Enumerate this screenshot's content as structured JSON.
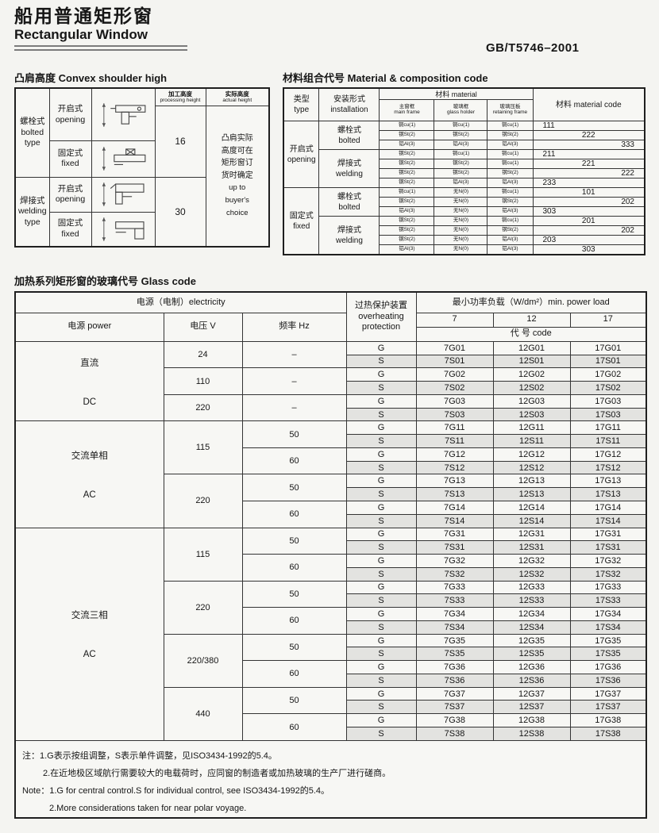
{
  "page": {
    "title_cn": "船用普通矩形窗",
    "title_en": "Rectangular Window",
    "standard": "GB/T5746–2001"
  },
  "convex_table": {
    "title": "凸肩高度 Convex shoulder high",
    "col_processing_cn": "加工高度",
    "col_processing_en": "processing height",
    "col_actual_cn": "实际高度",
    "col_actual_en": "actual height",
    "rows": [
      {
        "type_cn": "螺栓式",
        "type_en": "bolted type",
        "height": "16",
        "installs": [
          {
            "cn": "开启式",
            "en": "opening"
          },
          {
            "cn": "固定式",
            "en": "fixed"
          }
        ]
      },
      {
        "type_cn": "焊接式",
        "type_en": "welding type",
        "height": "30",
        "installs": [
          {
            "cn": "开启式",
            "en": "opening"
          },
          {
            "cn": "固定式",
            "en": "fixed"
          }
        ]
      }
    ],
    "actual_note_cn": [
      "凸肩实际",
      "高度可在",
      "矩形窗订",
      "货时确定"
    ],
    "actual_note_en": [
      "up to",
      "buyer's",
      "choice"
    ]
  },
  "material_table": {
    "title": "材料组合代号 Material & composition code",
    "headers": {
      "type_cn": "类型",
      "type_en": "type",
      "install_cn": "安装形式",
      "install_en": "installation",
      "material_cn": "材料",
      "material_en": "material",
      "main_cn": "主窗框",
      "main_en": "main frame",
      "holder_cn": "玻璃框",
      "holder_en": "glass holder",
      "retain_cn": "玻璃压板",
      "retain_en": "retaining frame",
      "code_cn": "材料",
      "code_en": "material code"
    },
    "groups": [
      {
        "type_cn": "开启式",
        "type_en": "opening",
        "installs": [
          {
            "cn": "螺栓式",
            "en": "bolted",
            "rows": [
              {
                "m": [
                  "铜cu(1)",
                  "铜cu(1)",
                  "铜cu(1)"
                ],
                "code": "111",
                "align": "l"
              },
              {
                "m": [
                  "钢St(2)",
                  "钢St(2)",
                  "钢St(2)"
                ],
                "code": "222",
                "align": "c"
              },
              {
                "m": [
                  "铝Al(3)",
                  "铝Al(3)",
                  "铝Al(3)"
                ],
                "code": "333",
                "align": "r"
              }
            ]
          },
          {
            "cn": "焊接式",
            "en": "welding",
            "rows": [
              {
                "m": [
                  "钢St(2)",
                  "铜cu(1)",
                  "铜cu(1)"
                ],
                "code": "211",
                "align": "l"
              },
              {
                "m": [
                  "钢St(2)",
                  "钢St(2)",
                  "铜cu(1)"
                ],
                "code": "221",
                "align": "c"
              },
              {
                "m": [
                  "钢St(2)",
                  "钢St(2)",
                  "钢St(2)"
                ],
                "code": "222",
                "align": "r"
              },
              {
                "m": [
                  "钢St(2)",
                  "铝Al(3)",
                  "铝Al(3)"
                ],
                "code": "233",
                "align": "l"
              }
            ]
          }
        ]
      },
      {
        "type_cn": "固定式",
        "type_en": "fixed",
        "installs": [
          {
            "cn": "螺栓式",
            "en": "bolted",
            "rows": [
              {
                "m": [
                  "铜cu(1)",
                  "无N(0)",
                  "铜cu(1)"
                ],
                "code": "101",
                "align": "c"
              },
              {
                "m": [
                  "钢St(2)",
                  "无N(0)",
                  "钢St(2)"
                ],
                "code": "202",
                "align": "r"
              },
              {
                "m": [
                  "铝Al(3)",
                  "无N(0)",
                  "铝Al(3)"
                ],
                "code": "303",
                "align": "l"
              }
            ]
          },
          {
            "cn": "焊接式",
            "en": "welding",
            "rows": [
              {
                "m": [
                  "钢St(2)",
                  "无N(0)",
                  "铜cu(1)"
                ],
                "code": "201",
                "align": "c"
              },
              {
                "m": [
                  "钢St(2)",
                  "无N(0)",
                  "钢St(2)"
                ],
                "code": "202",
                "align": "r"
              },
              {
                "m": [
                  "钢St(2)",
                  "无N(0)",
                  "铝Al(3)"
                ],
                "code": "203",
                "align": "l"
              },
              {
                "m": [
                  "铝Al(3)",
                  "无N(0)",
                  "铝Al(3)"
                ],
                "code": "303",
                "align": "c"
              }
            ]
          }
        ]
      }
    ]
  },
  "glass_table": {
    "title": "加热系列矩形窗的玻璃代号  Glass code",
    "headers": {
      "electricity": "电源（电制）electricity",
      "power": "电源  power",
      "voltage": "电压 V",
      "freq": "频率  Hz",
      "protection_cn": "过热保护装置",
      "protection_en1": "overheating",
      "protection_en2": "protection",
      "load": "最小功率负载（W/dm²）min. power load",
      "load_cols": [
        "7",
        "12",
        "17"
      ],
      "code": "代 号 code"
    },
    "groups": [
      {
        "cn": "直流",
        "en": "DC",
        "voltages": [
          {
            "v": "24",
            "freqs": [
              {
                "f": "–",
                "g": [
                  "7G01",
                  "12G01",
                  "17G01"
                ],
                "s": [
                  "7S01",
                  "12S01",
                  "17S01"
                ]
              }
            ]
          },
          {
            "v": "110",
            "freqs": [
              {
                "f": "–",
                "g": [
                  "7G02",
                  "12G02",
                  "17G02"
                ],
                "s": [
                  "7S02",
                  "12S02",
                  "17S02"
                ]
              }
            ]
          },
          {
            "v": "220",
            "freqs": [
              {
                "f": "–",
                "g": [
                  "7G03",
                  "12G03",
                  "17G03"
                ],
                "s": [
                  "7S03",
                  "12S03",
                  "17S03"
                ]
              }
            ]
          }
        ]
      },
      {
        "cn": "交流单相",
        "en": "AC",
        "voltages": [
          {
            "v": "115",
            "freqs": [
              {
                "f": "50",
                "g": [
                  "7G11",
                  "12G11",
                  "17G11"
                ],
                "s": [
                  "7S11",
                  "12S11",
                  "17S11"
                ]
              },
              {
                "f": "60",
                "g": [
                  "7G12",
                  "12G12",
                  "17G12"
                ],
                "s": [
                  "7S12",
                  "12S12",
                  "17S12"
                ]
              }
            ]
          },
          {
            "v": "220",
            "freqs": [
              {
                "f": "50",
                "g": [
                  "7G13",
                  "12G13",
                  "17G13"
                ],
                "s": [
                  "7S13",
                  "12S13",
                  "17S13"
                ]
              },
              {
                "f": "60",
                "g": [
                  "7G14",
                  "12G14",
                  "17G14"
                ],
                "s": [
                  "7S14",
                  "12S14",
                  "17S14"
                ]
              }
            ]
          }
        ]
      },
      {
        "cn": "交流三相",
        "en": "AC",
        "voltages": [
          {
            "v": "115",
            "freqs": [
              {
                "f": "50",
                "g": [
                  "7G31",
                  "12G31",
                  "17G31"
                ],
                "s": [
                  "7S31",
                  "12S31",
                  "17S31"
                ]
              },
              {
                "f": "60",
                "g": [
                  "7G32",
                  "12G32",
                  "17G32"
                ],
                "s": [
                  "7S32",
                  "12S32",
                  "17S32"
                ]
              }
            ]
          },
          {
            "v": "220",
            "freqs": [
              {
                "f": "50",
                "g": [
                  "7G33",
                  "12G33",
                  "17G33"
                ],
                "s": [
                  "7S33",
                  "12S33",
                  "17S33"
                ]
              },
              {
                "f": "60",
                "g": [
                  "7G34",
                  "12G34",
                  "17G34"
                ],
                "s": [
                  "7S34",
                  "12S34",
                  "17S34"
                ]
              }
            ]
          },
          {
            "v": "220/380",
            "freqs": [
              {
                "f": "50",
                "g": [
                  "7G35",
                  "12G35",
                  "17G35"
                ],
                "s": [
                  "7S35",
                  "12S35",
                  "17S35"
                ]
              },
              {
                "f": "60",
                "g": [
                  "7G36",
                  "12G36",
                  "17G36"
                ],
                "s": [
                  "7S36",
                  "12S36",
                  "17S36"
                ]
              }
            ]
          },
          {
            "v": "440",
            "freqs": [
              {
                "f": "50",
                "g": [
                  "7G37",
                  "12G37",
                  "17G37"
                ],
                "s": [
                  "7S37",
                  "12S37",
                  "17S37"
                ]
              },
              {
                "f": "60",
                "g": [
                  "7G38",
                  "12G38",
                  "17G38"
                ],
                "s": [
                  "7S38",
                  "12S38",
                  "17S38"
                ]
              }
            ]
          }
        ]
      }
    ],
    "notes": {
      "cn1": "注：1.G表示按组调整，S表示单件调整，见ISO3434-1992的5.4。",
      "cn2": "2.在近地极区域航行需要较大的电载荷时，应同窗的制造者或加热玻璃的生产厂进行磋商。",
      "en1": "Note：1.G for central control.S for individual control, see ISO3434-1992的5.4。",
      "en2": "2.More considerations taken for near polar voyage."
    }
  },
  "colors": {
    "page_bg": "#f4f4f1",
    "table_bg": "#f7f7f4",
    "shaded_row_bg": "#e3e3e0",
    "border": "#343434",
    "text": "#161616"
  }
}
